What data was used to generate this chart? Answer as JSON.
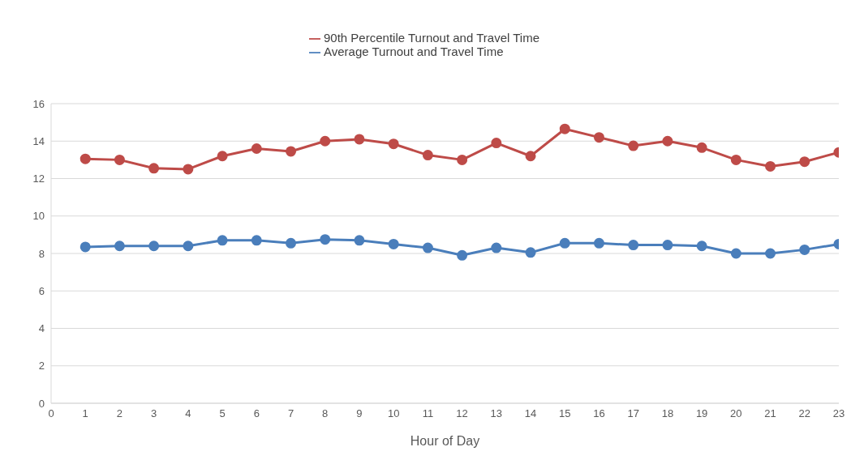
{
  "chart_data": {
    "type": "line",
    "xlabel": "Hour of Day",
    "x": [
      1,
      2,
      3,
      4,
      5,
      6,
      7,
      8,
      9,
      10,
      11,
      12,
      13,
      14,
      15,
      16,
      17,
      18,
      19,
      20,
      21,
      22,
      23
    ],
    "series": [
      {
        "name": "Average Turnout and Travel Time",
        "color": "#4a7ebb",
        "values": [
          8.35,
          8.4,
          8.4,
          8.4,
          8.7,
          8.7,
          8.55,
          8.75,
          8.7,
          8.5,
          8.3,
          7.9,
          8.3,
          8.05,
          8.55,
          8.55,
          8.45,
          8.45,
          8.4,
          8.0,
          8.0,
          8.2,
          8.5
        ]
      },
      {
        "name": "90th Percentile Turnout and Travel Time",
        "color": "#be4b48",
        "values": [
          13.05,
          13.0,
          12.55,
          12.5,
          13.2,
          13.6,
          13.45,
          14.0,
          14.1,
          13.85,
          13.25,
          13.0,
          13.9,
          13.2,
          14.65,
          14.2,
          13.75,
          14.0,
          13.65,
          13.0,
          12.65,
          12.9,
          13.4
        ]
      }
    ],
    "xlim": [
      0,
      23
    ],
    "xticks": [
      0,
      1,
      2,
      3,
      4,
      5,
      6,
      7,
      8,
      9,
      10,
      11,
      12,
      13,
      14,
      15,
      16,
      17,
      18,
      19,
      20,
      21,
      22,
      23
    ],
    "ylim": [
      0,
      16
    ],
    "yticks": [
      0,
      2,
      4,
      6,
      8,
      10,
      12,
      14,
      16
    ],
    "grid": "y",
    "legend": "top",
    "marker": "circle",
    "line_style": "solid"
  }
}
